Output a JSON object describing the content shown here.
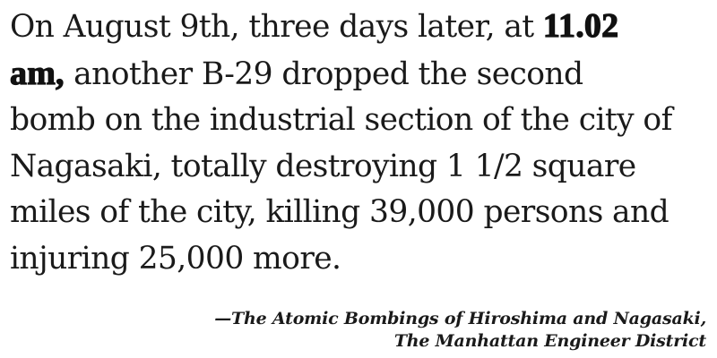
{
  "quote": {
    "line_1_text": "On August 9th, three days later, at ",
    "line_1_time": "11.02",
    "line_2_time": "am,",
    "line_2_text": " another B-29 dropped the second",
    "line_3": "bomb on the industrial section of the city of",
    "line_4": "Nagasaki, totally destroying 1 1/2 square",
    "line_5": "miles of the city, killing 39,000 persons and",
    "line_6": "injuring 25,000 more."
  },
  "attribution": {
    "line_1": "—The Atomic Bombings of Hiroshima and Nagasaki,",
    "line_2": "The Manhattan Engineer District"
  }
}
